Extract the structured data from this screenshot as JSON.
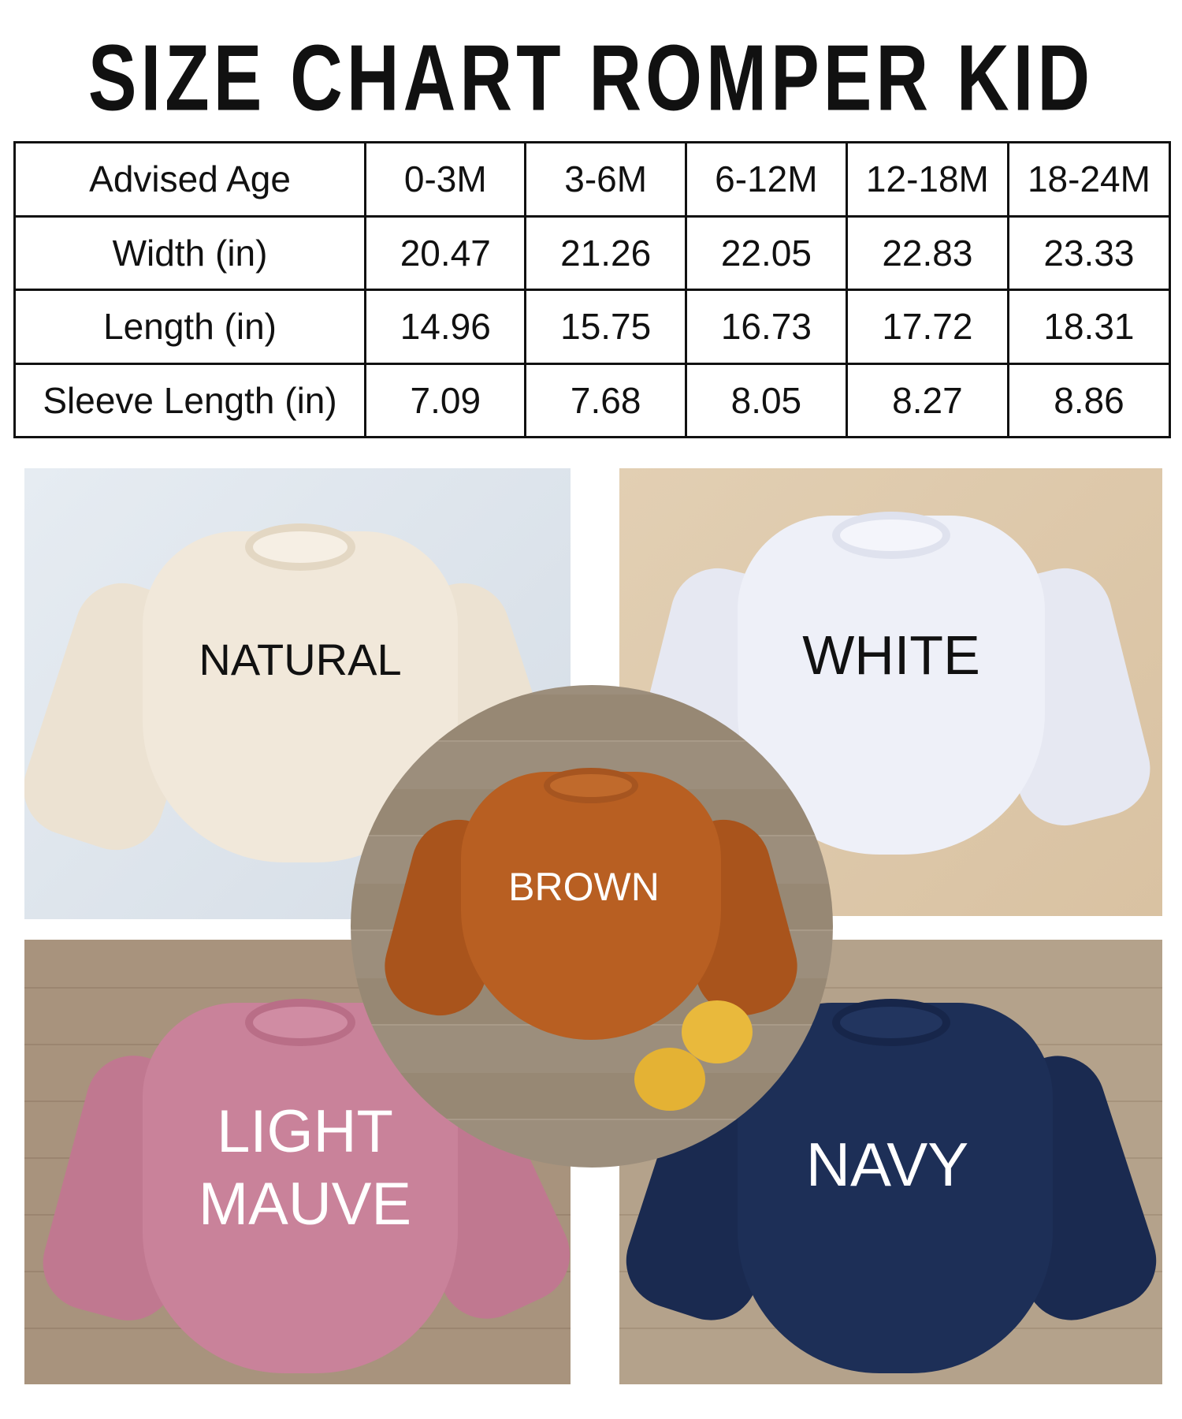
{
  "title": "SIZE CHART ROMPER KID",
  "table": {
    "header": [
      "Advised Age",
      "0-3M",
      "3-6M",
      "6-12M",
      "12-18M",
      "18-24M"
    ],
    "rows": [
      [
        "Width (in)",
        "20.47",
        "21.26",
        "22.05",
        "22.83",
        "23.33"
      ],
      [
        "Length (in)",
        "14.96",
        "15.75",
        "16.73",
        "17.72",
        "18.31"
      ],
      [
        "Sleeve Length (in)",
        "7.09",
        "7.68",
        "8.05",
        "8.27",
        "8.86"
      ]
    ]
  },
  "colors": [
    {
      "label": "NATURAL",
      "hex": "#f1e8da"
    },
    {
      "label": "WHITE",
      "hex": "#eef0f8"
    },
    {
      "label": "BROWN",
      "hex": "#b85f22"
    },
    {
      "label": "LIGHT",
      "label2": "MAUVE",
      "hex": "#c9829a"
    },
    {
      "label": "NAVY",
      "hex": "#1d2f57"
    }
  ]
}
